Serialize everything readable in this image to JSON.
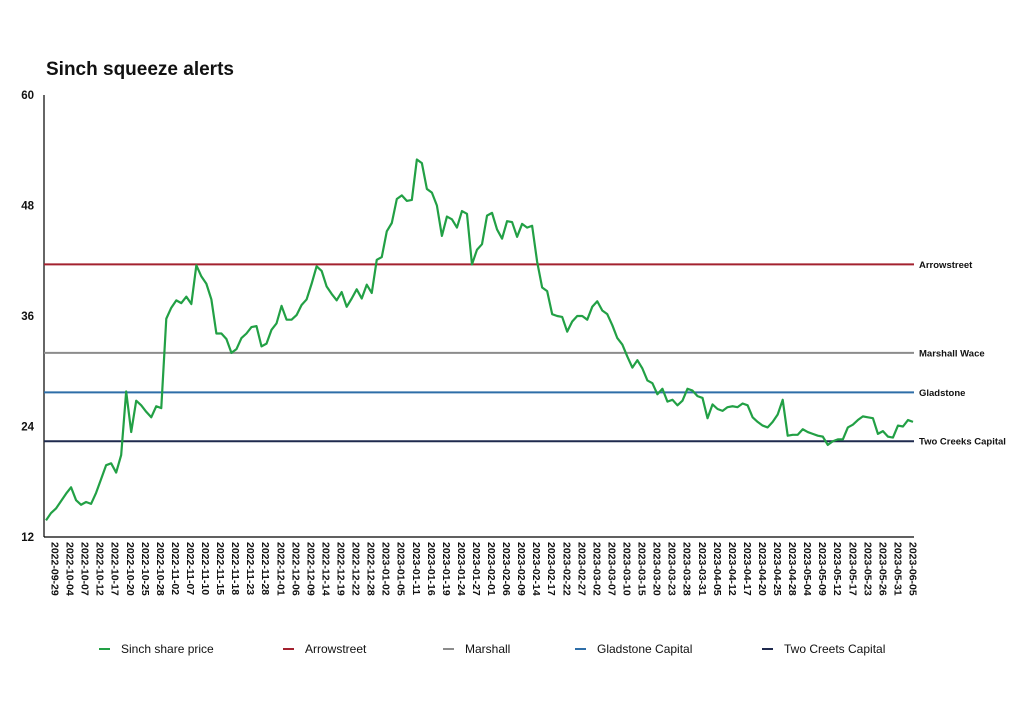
{
  "chart_data": {
    "type": "line",
    "title": "Sinch squeeze alerts",
    "xlabel": "",
    "ylabel": "",
    "ylim": [
      12,
      60
    ],
    "y_ticks": [
      12,
      24,
      36,
      48,
      60
    ],
    "grid": false,
    "legend_position": "bottom",
    "x_tick_labels": [
      "2022-09-29",
      "2022-10-04",
      "2022-10-07",
      "2022-10-12",
      "2022-10-17",
      "2022-10-20",
      "2022-10-25",
      "2022-10-28",
      "2022-11-02",
      "2022-11-07",
      "2022-11-10",
      "2022-11-15",
      "2022-11-18",
      "2022-11-23",
      "2022-11-28",
      "2022-12-01",
      "2022-12-06",
      "2022-12-09",
      "2022-12-14",
      "2022-12-19",
      "2022-12-22",
      "2022-12-28",
      "2023-01-02",
      "2023-01-05",
      "2023-01-11",
      "2023-01-16",
      "2023-01-19",
      "2023-01-24",
      "2023-01-27",
      "2023-02-01",
      "2023-02-06",
      "2023-02-09",
      "2023-02-14",
      "2023-02-17",
      "2023-02-22",
      "2023-02-27",
      "2023-03-02",
      "2023-03-07",
      "2023-03-10",
      "2023-03-15",
      "2023-03-20",
      "2023-03-23",
      "2023-03-28",
      "2023-03-31",
      "2023-04-05",
      "2023-04-12",
      "2023-04-17",
      "2023-04-20",
      "2023-04-25",
      "2023-04-28",
      "2023-05-04",
      "2023-05-09",
      "2023-05-12",
      "2023-05-17",
      "2023-05-23",
      "2023-05-26",
      "2023-05-31",
      "2023-06-05"
    ],
    "series": [
      {
        "name": "Sinch share price",
        "color": "#22a045",
        "values": [
          13.8,
          14.6,
          15.1,
          15.9,
          16.7,
          17.4,
          16.0,
          15.5,
          15.8,
          15.6,
          16.8,
          18.3,
          19.8,
          20.0,
          19.0,
          20.9,
          27.8,
          23.4,
          26.8,
          26.3,
          25.6,
          25.0,
          26.2,
          26.0,
          35.7,
          36.9,
          37.7,
          37.4,
          38.1,
          37.3,
          41.5,
          40.3,
          39.5,
          37.8,
          34.1,
          34.1,
          33.5,
          32.0,
          32.4,
          33.6,
          34.1,
          34.8,
          34.9,
          32.7,
          33.0,
          34.5,
          35.2,
          37.1,
          35.6,
          35.6,
          36.1,
          37.2,
          37.8,
          39.5,
          41.4,
          40.9,
          39.2,
          38.4,
          37.7,
          38.6,
          37.0,
          37.9,
          38.9,
          37.9,
          39.4,
          38.5,
          42.1,
          42.4,
          45.2,
          46.1,
          48.7,
          49.1,
          48.5,
          48.6,
          53.0,
          52.6,
          49.8,
          49.4,
          48.0,
          44.7,
          46.8,
          46.5,
          45.6,
          47.4,
          47.1,
          41.6,
          43.2,
          43.8,
          46.9,
          47.2,
          45.4,
          44.4,
          46.3,
          46.2,
          44.6,
          46.0,
          45.6,
          45.8,
          41.9,
          39.1,
          38.7,
          36.2,
          36.0,
          35.9,
          34.3,
          35.4,
          36.0,
          36.0,
          35.6,
          37.0,
          37.6,
          36.6,
          36.2,
          35.0,
          33.6,
          32.9,
          31.6,
          30.4,
          31.2,
          30.3,
          29.0,
          28.7,
          27.5,
          28.1,
          26.7,
          26.9,
          26.3,
          26.8,
          28.1,
          27.9,
          27.3,
          27.1,
          24.9,
          26.4,
          25.9,
          25.7,
          26.1,
          26.2,
          26.1,
          26.5,
          26.3,
          25.0,
          24.5,
          24.1,
          23.9,
          24.5,
          25.3,
          26.9,
          23.0,
          23.1,
          23.1,
          23.7,
          23.4,
          23.2,
          23.0,
          22.9,
          22.0,
          22.4,
          22.6,
          22.6,
          23.9,
          24.2,
          24.7,
          25.1,
          25.0,
          24.9,
          23.2,
          23.5,
          22.9,
          22.8,
          24.1,
          24.0,
          24.7,
          24.5
        ]
      }
    ],
    "reference_lines": [
      {
        "name": "Arrowstreet",
        "label": "Arrowstreet",
        "value": 41.6,
        "color": "#a3212f"
      },
      {
        "name": "Marshall",
        "label": "Marshall Wace",
        "value": 32.0,
        "color": "#8c8c8c"
      },
      {
        "name": "Gladstone Capital",
        "label": "Gladstone",
        "value": 27.7,
        "color": "#2e6ea8"
      },
      {
        "name": "Two Creets Capital",
        "label": "Two Creeks Capital",
        "value": 22.4,
        "color": "#1f2a4e"
      }
    ]
  }
}
